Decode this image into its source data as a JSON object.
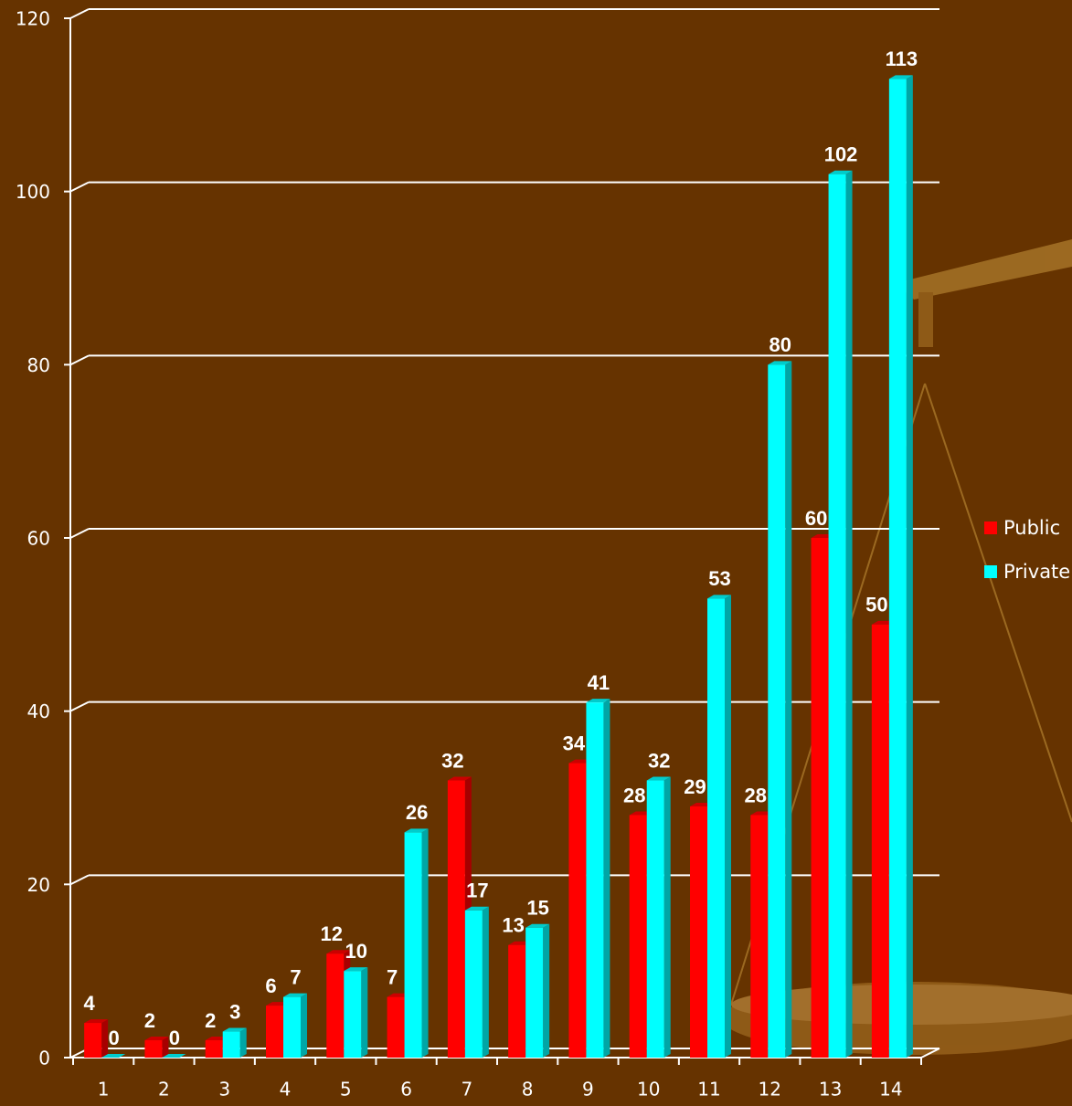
{
  "chart_data": {
    "type": "bar",
    "categories": [
      "1",
      "2",
      "3",
      "4",
      "5",
      "6",
      "7",
      "8",
      "9",
      "10",
      "11",
      "12",
      "13",
      "14"
    ],
    "series": [
      {
        "name": "Public",
        "color": "#ff0000",
        "values": [
          4,
          2,
          2,
          6,
          12,
          7,
          32,
          13,
          34,
          28,
          29,
          28,
          60,
          50
        ]
      },
      {
        "name": "Private",
        "color": "#00ffff",
        "values": [
          0,
          0,
          3,
          7,
          10,
          26,
          17,
          15,
          41,
          32,
          53,
          80,
          102,
          113
        ]
      }
    ],
    "ylim": [
      0,
      120
    ],
    "yticks": [
      0,
      20,
      40,
      60,
      80,
      100,
      120
    ],
    "grid": true,
    "legend": "right"
  }
}
